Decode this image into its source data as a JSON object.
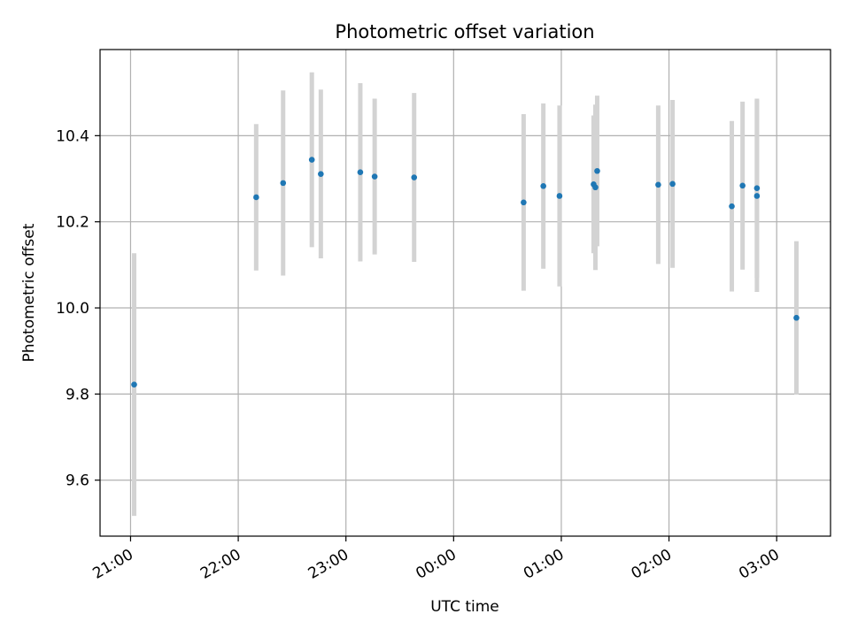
{
  "chart_data": {
    "type": "scatter",
    "title": "Photometric offset variation",
    "xlabel": "UTC time",
    "ylabel": "Photometric offset",
    "x_ticks": [
      "21:00",
      "22:00",
      "23:00",
      "00:00",
      "01:00",
      "02:00",
      "03:00"
    ],
    "y_ticks": [
      "9.6",
      "9.8",
      "10.0",
      "10.2",
      "10.4"
    ],
    "xlim": [
      "20:43",
      "03:30"
    ],
    "ylim": [
      9.47,
      10.6
    ],
    "grid": true,
    "colors": {
      "point": "#1f77b4",
      "errorbar": "#d3d3d3",
      "grid": "#b0b0b0"
    },
    "points": [
      {
        "x": "21:02",
        "y": 9.822,
        "yerr": 0.305
      },
      {
        "x": "22:10",
        "y": 10.257,
        "yerr": 0.17
      },
      {
        "x": "22:25",
        "y": 10.29,
        "yerr": 0.215
      },
      {
        "x": "22:41",
        "y": 10.344,
        "yerr": 0.203
      },
      {
        "x": "22:46",
        "y": 10.311,
        "yerr": 0.196
      },
      {
        "x": "23:08",
        "y": 10.315,
        "yerr": 0.207
      },
      {
        "x": "23:16",
        "y": 10.305,
        "yerr": 0.181
      },
      {
        "x": "23:38",
        "y": 10.303,
        "yerr": 0.196
      },
      {
        "x": "00:39",
        "y": 10.245,
        "yerr": 0.205
      },
      {
        "x": "00:50",
        "y": 10.283,
        "yerr": 0.192
      },
      {
        "x": "00:59",
        "y": 10.26,
        "yerr": 0.21
      },
      {
        "x": "01:18",
        "y": 10.287,
        "yerr": 0.16
      },
      {
        "x": "01:19",
        "y": 10.28,
        "yerr": 0.192
      },
      {
        "x": "01:20",
        "y": 10.318,
        "yerr": 0.175
      },
      {
        "x": "01:54",
        "y": 10.286,
        "yerr": 0.184
      },
      {
        "x": "02:02",
        "y": 10.288,
        "yerr": 0.195
      },
      {
        "x": "02:35",
        "y": 10.236,
        "yerr": 0.198
      },
      {
        "x": "02:41",
        "y": 10.284,
        "yerr": 0.195
      },
      {
        "x": "02:49",
        "y": 10.278,
        "yerr": 0.208
      },
      {
        "x": "02:49",
        "y": 10.26,
        "yerr": 0.223
      },
      {
        "x": "03:11",
        "y": 9.977,
        "yerr": 0.178
      }
    ]
  }
}
